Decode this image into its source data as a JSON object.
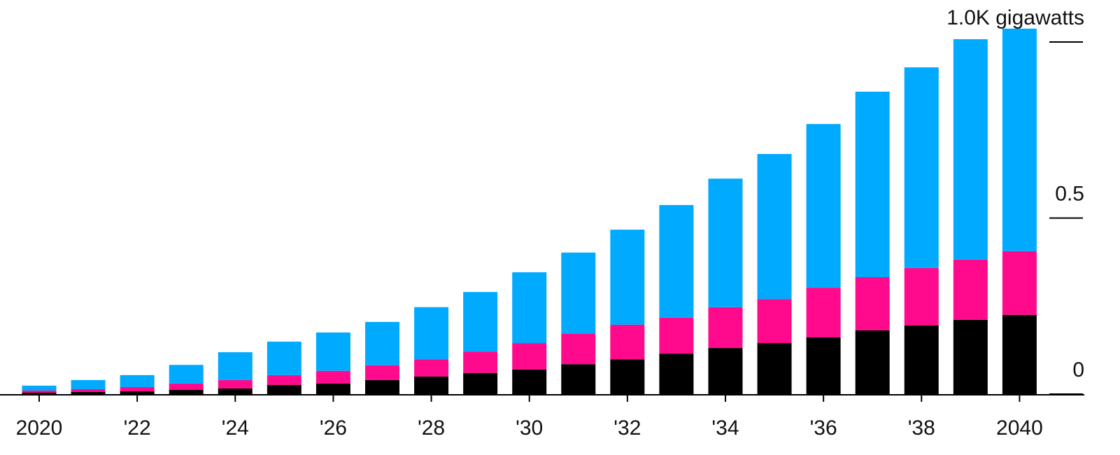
{
  "chart_data": {
    "type": "stacked_bar",
    "categories": [
      "2020",
      null,
      "'22",
      null,
      "'24",
      null,
      "'26",
      null,
      "'28",
      null,
      "'30",
      null,
      "'32",
      null,
      "'34",
      null,
      "'36",
      null,
      "'38",
      null,
      "2040"
    ],
    "series": [
      {
        "color": "#000000",
        "values": [
          0.004,
          0.006,
          0.008,
          0.012,
          0.016,
          0.026,
          0.03,
          0.04,
          0.05,
          0.06,
          0.07,
          0.085,
          0.099,
          0.115,
          0.131,
          0.145,
          0.161,
          0.181,
          0.195,
          0.211,
          0.225
        ]
      },
      {
        "color": "#ff0a8c",
        "values": [
          0.006,
          0.008,
          0.012,
          0.018,
          0.024,
          0.028,
          0.036,
          0.042,
          0.049,
          0.061,
          0.075,
          0.086,
          0.098,
          0.102,
          0.116,
          0.125,
          0.141,
          0.151,
          0.163,
          0.171,
          0.181
        ]
      },
      {
        "color": "#00aaff",
        "values": [
          0.014,
          0.026,
          0.034,
          0.053,
          0.079,
          0.095,
          0.109,
          0.123,
          0.148,
          0.169,
          0.201,
          0.231,
          0.27,
          0.32,
          0.365,
          0.412,
          0.465,
          0.527,
          0.57,
          0.626,
          0.632
        ]
      }
    ],
    "ylim": [
      0,
      1.0
    ],
    "yticks": [
      0,
      0.5,
      {
        "value": 1.0,
        "label": "1.0K gigawatts"
      }
    ]
  }
}
